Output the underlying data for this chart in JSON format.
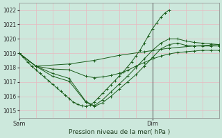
{
  "xlabel": "Pression niveau de la mer( hPa )",
  "ylim": [
    1014.5,
    1022.5
  ],
  "yticks": [
    1015,
    1016,
    1017,
    1018,
    1019,
    1020,
    1021,
    1022
  ],
  "xlim": [
    0,
    48
  ],
  "xtick_positions": [
    0,
    32
  ],
  "xtick_labels": [
    "Sam",
    "Dim"
  ],
  "bg_color": "#cce8dc",
  "grid_color": "#e8b8c0",
  "line_color": "#1a5c1a",
  "vline_x": 32,
  "series": [
    [
      [
        0,
        1019.0
      ],
      [
        1,
        1018.7
      ],
      [
        2,
        1018.4
      ],
      [
        3,
        1018.1
      ],
      [
        4,
        1017.85
      ],
      [
        5,
        1017.6
      ],
      [
        6,
        1017.35
      ],
      [
        7,
        1017.1
      ],
      [
        8,
        1016.85
      ],
      [
        9,
        1016.6
      ],
      [
        10,
        1016.35
      ],
      [
        11,
        1016.1
      ],
      [
        12,
        1015.85
      ],
      [
        13,
        1015.6
      ],
      [
        14,
        1015.45
      ],
      [
        15,
        1015.35
      ],
      [
        16,
        1015.3
      ],
      [
        17,
        1015.4
      ],
      [
        18,
        1015.6
      ],
      [
        19,
        1015.9
      ],
      [
        20,
        1016.2
      ],
      [
        21,
        1016.5
      ],
      [
        22,
        1016.8
      ],
      [
        23,
        1017.1
      ],
      [
        24,
        1017.4
      ],
      [
        25,
        1017.7
      ],
      [
        26,
        1018.05
      ],
      [
        27,
        1018.4
      ],
      [
        28,
        1018.8
      ],
      [
        29,
        1019.2
      ],
      [
        30,
        1019.7
      ],
      [
        31,
        1020.2
      ],
      [
        32,
        1020.7
      ],
      [
        33,
        1021.1
      ],
      [
        34,
        1021.5
      ],
      [
        35,
        1021.8
      ],
      [
        36,
        1022.0
      ]
    ],
    [
      [
        0,
        1019.0
      ],
      [
        4,
        1018.1
      ],
      [
        8,
        1017.4
      ],
      [
        12,
        1017.05
      ],
      [
        16,
        1015.6
      ],
      [
        18,
        1015.3
      ],
      [
        20,
        1015.55
      ],
      [
        22,
        1016.0
      ],
      [
        24,
        1016.5
      ],
      [
        26,
        1017.0
      ],
      [
        28,
        1017.5
      ],
      [
        30,
        1018.1
      ],
      [
        32,
        1018.7
      ],
      [
        34,
        1019.3
      ],
      [
        36,
        1019.6
      ],
      [
        38,
        1019.7
      ],
      [
        40,
        1019.55
      ],
      [
        42,
        1019.5
      ],
      [
        44,
        1019.5
      ],
      [
        46,
        1019.5
      ],
      [
        48,
        1019.5
      ]
    ],
    [
      [
        0,
        1019.0
      ],
      [
        4,
        1018.1
      ],
      [
        8,
        1017.6
      ],
      [
        12,
        1017.25
      ],
      [
        16,
        1015.65
      ],
      [
        18,
        1015.35
      ],
      [
        20,
        1015.75
      ],
      [
        22,
        1016.3
      ],
      [
        24,
        1016.85
      ],
      [
        26,
        1017.4
      ],
      [
        28,
        1018.0
      ],
      [
        30,
        1018.6
      ],
      [
        32,
        1019.2
      ],
      [
        34,
        1019.7
      ],
      [
        36,
        1020.0
      ],
      [
        38,
        1020.0
      ],
      [
        40,
        1019.85
      ],
      [
        42,
        1019.75
      ],
      [
        44,
        1019.7
      ],
      [
        46,
        1019.65
      ],
      [
        48,
        1019.6
      ]
    ],
    [
      [
        0,
        1019.0
      ],
      [
        4,
        1018.1
      ],
      [
        12,
        1018.25
      ],
      [
        18,
        1018.5
      ],
      [
        24,
        1018.85
      ],
      [
        30,
        1019.1
      ],
      [
        36,
        1019.35
      ],
      [
        42,
        1019.5
      ],
      [
        48,
        1019.6
      ]
    ],
    [
      [
        0,
        1019.0
      ],
      [
        4,
        1018.1
      ],
      [
        8,
        1017.9
      ],
      [
        12,
        1017.85
      ],
      [
        16,
        1017.4
      ],
      [
        18,
        1017.3
      ],
      [
        20,
        1017.35
      ],
      [
        22,
        1017.45
      ],
      [
        24,
        1017.6
      ],
      [
        26,
        1017.8
      ],
      [
        28,
        1018.1
      ],
      [
        30,
        1018.35
      ],
      [
        32,
        1018.6
      ],
      [
        34,
        1018.8
      ],
      [
        36,
        1018.95
      ],
      [
        38,
        1019.05
      ],
      [
        40,
        1019.1
      ],
      [
        42,
        1019.15
      ],
      [
        44,
        1019.2
      ],
      [
        46,
        1019.2
      ],
      [
        48,
        1019.2
      ]
    ]
  ]
}
